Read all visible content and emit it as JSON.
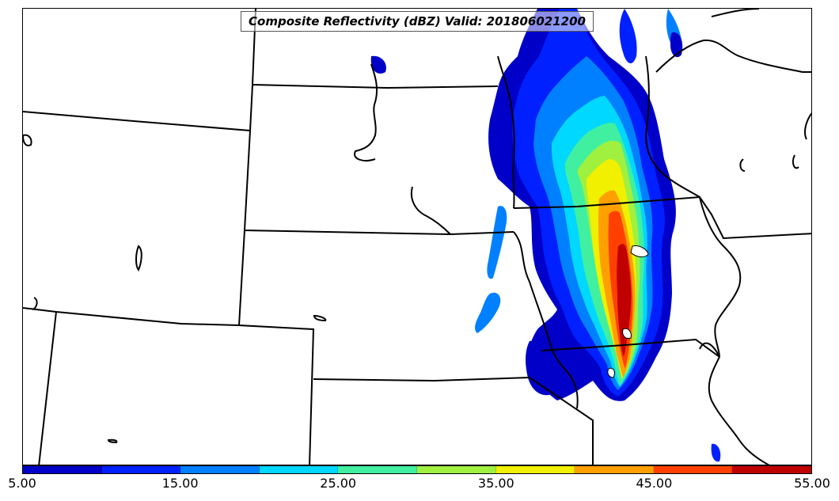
{
  "title": "Composite Reflectivity (dBZ) Valid: 2018060212 00",
  "title_text": "Composite Reflectivity (dBZ) Valid: 201806021200",
  "legend": {
    "levels": [
      5,
      10,
      15,
      20,
      25,
      30,
      35,
      40,
      45,
      50,
      55
    ],
    "colors": [
      "#0000c8",
      "#0020ff",
      "#0080ff",
      "#00d8ff",
      "#40f0a0",
      "#a0f040",
      "#f0f000",
      "#ffa000",
      "#ff4000",
      "#c00000"
    ],
    "tick_labels": [
      "5.00",
      "15.00",
      "25.00",
      "35.00",
      "45.00",
      "55.00"
    ]
  },
  "palette": {
    "low": "#0000c8",
    "mid_blue": "#0020ff",
    "sky": "#0080ff",
    "cyan": "#00d8ff",
    "teal": "#40f0a0",
    "green": "#a0f040",
    "yellow": "#f0f000",
    "orange": "#ffa000",
    "red_orange": "#ff4000",
    "dark_red": "#c00000"
  }
}
